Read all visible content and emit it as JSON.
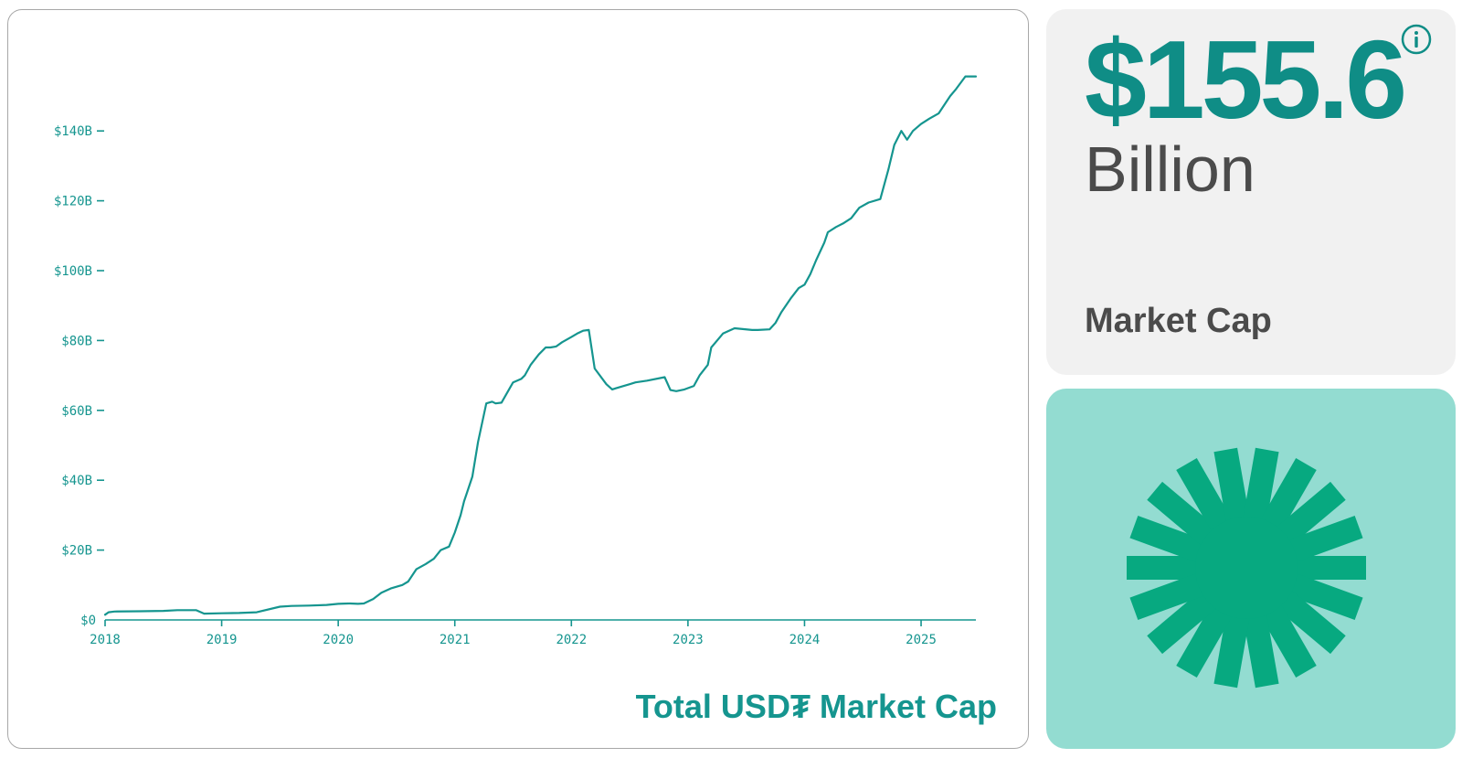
{
  "chart_data": {
    "type": "line",
    "title": "Total USD₮ Market Cap",
    "xlabel": "",
    "ylabel": "",
    "x_ticks": [
      "2018",
      "2019",
      "2020",
      "2021",
      "2022",
      "2023",
      "2024",
      "2025"
    ],
    "y_ticks": [
      "$0",
      "$20B",
      "$40B",
      "$60B",
      "$80B",
      "$100B",
      "$120B",
      "$140B"
    ],
    "xlim": [
      2018.0,
      2025.47
    ],
    "ylim": [
      0,
      160
    ],
    "grid": false,
    "series": [
      {
        "color": "#15958f",
        "x": [
          2018.0,
          2018.03,
          2018.08,
          2018.3,
          2018.5,
          2018.62,
          2018.78,
          2018.85,
          2019.0,
          2019.15,
          2019.3,
          2019.5,
          2019.6,
          2019.75,
          2019.9,
          2020.0,
          2020.1,
          2020.17,
          2020.22,
          2020.3,
          2020.37,
          2020.45,
          2020.55,
          2020.6,
          2020.67,
          2020.75,
          2020.82,
          2020.88,
          2020.95,
          2021.0,
          2021.05,
          2021.08,
          2021.1,
          2021.15,
          2021.2,
          2021.27,
          2021.32,
          2021.35,
          2021.4,
          2021.5,
          2021.57,
          2021.6,
          2021.65,
          2021.72,
          2021.78,
          2021.82,
          2021.87,
          2021.92,
          2022.0,
          2022.05,
          2022.1,
          2022.15,
          2022.2,
          2022.3,
          2022.35,
          2022.38,
          2022.45,
          2022.5,
          2022.55,
          2022.65,
          2022.8,
          2022.85,
          2022.9,
          2022.97,
          2023.05,
          2023.1,
          2023.17,
          2023.2,
          2023.25,
          2023.3,
          2023.4,
          2023.55,
          2023.6,
          2023.7,
          2023.75,
          2023.8,
          2023.88,
          2023.95,
          2024.0,
          2024.05,
          2024.1,
          2024.17,
          2024.2,
          2024.27,
          2024.33,
          2024.4,
          2024.47,
          2024.55,
          2024.65,
          2024.72,
          2024.77,
          2024.83,
          2024.88,
          2024.93,
          2025.0,
          2025.07,
          2025.15,
          2025.25,
          2025.3,
          2025.38,
          2025.47
        ],
        "y": [
          1.5,
          2.2,
          2.4,
          2.5,
          2.6,
          2.8,
          2.8,
          1.8,
          1.9,
          2.0,
          2.2,
          3.8,
          4.0,
          4.1,
          4.3,
          4.6,
          4.7,
          4.6,
          4.7,
          6.0,
          7.8,
          9.0,
          10.0,
          11.0,
          14.5,
          16.0,
          17.5,
          20.0,
          21.0,
          25.0,
          30.0,
          34.0,
          36.0,
          41.0,
          51.0,
          62.0,
          62.5,
          62.0,
          62.2,
          68.0,
          69.0,
          70.0,
          73.0,
          76.0,
          78.0,
          78.0,
          78.3,
          79.5,
          81.0,
          82.0,
          82.8,
          83.0,
          72.0,
          67.5,
          66.0,
          66.3,
          67.0,
          67.5,
          68.0,
          68.5,
          69.5,
          65.8,
          65.5,
          66.0,
          67.0,
          70.0,
          73.0,
          78.0,
          80.0,
          82.0,
          83.5,
          83.0,
          83.0,
          83.2,
          85.0,
          88.0,
          92.0,
          95.0,
          96.0,
          99.0,
          103.0,
          108.0,
          111.0,
          112.5,
          113.5,
          115.0,
          118.0,
          119.5,
          120.5,
          129.0,
          136.0,
          140.0,
          137.5,
          140.0,
          142.0,
          143.5,
          145.0,
          150.0,
          152.0,
          155.6,
          155.6
        ]
      }
    ]
  },
  "stat": {
    "value": "$155.6",
    "unit": "Billion",
    "label": "Market Cap"
  },
  "colors": {
    "accent": "#15958f",
    "logo": "#07a980",
    "logo_bg": "#93dcd1",
    "card_bg": "#f1f1f1"
  },
  "icons": {
    "info": "info-icon",
    "logo": "sunburst-logo-icon"
  }
}
